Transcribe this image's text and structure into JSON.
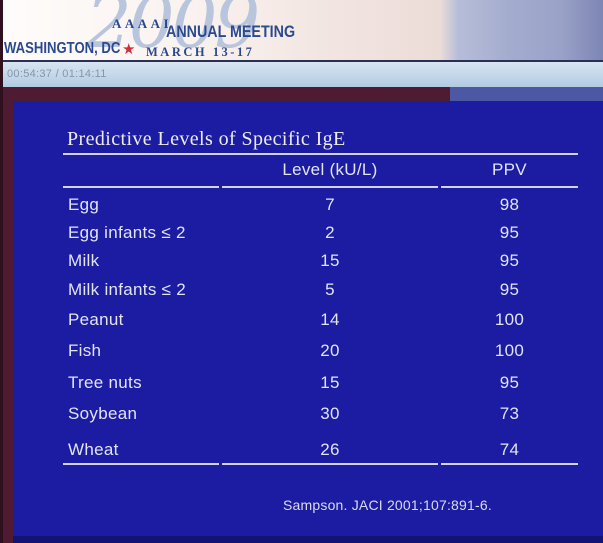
{
  "header": {
    "year": "2009",
    "org": "AAAAI",
    "meeting": "ANNUAL MEETING",
    "city": "WASHINGTON, DC",
    "star_icon": "★",
    "dates": "MARCH 13-17"
  },
  "player": {
    "timecode": "00:54:37 / 01:14:11"
  },
  "slide": {
    "title": "Predictive Levels of Specific IgE",
    "citation": "Sampson. JACI 2001;107:891-6."
  },
  "chart_data": {
    "type": "table",
    "title": "Predictive Levels of Specific IgE",
    "columns": [
      "",
      "Level (kU/L)",
      "PPV"
    ],
    "rows": [
      [
        "Egg",
        7,
        98
      ],
      [
        "Egg infants ≤ 2",
        2,
        95
      ],
      [
        "Milk",
        15,
        95
      ],
      [
        "Milk infants ≤ 2",
        5,
        95
      ],
      [
        "Peanut",
        14,
        100
      ],
      [
        "Fish",
        20,
        100
      ],
      [
        "Tree nuts",
        15,
        95
      ],
      [
        "Soybean",
        30,
        73
      ],
      [
        "Wheat",
        26,
        74
      ]
    ],
    "source": "Sampson. JACI 2001;107:891-6."
  },
  "colors": {
    "slide_background": "#1c1ca2",
    "frame_maroon": "#4e1b32",
    "logo_blue": "#2b4a8e",
    "star_red": "#cd2f3e",
    "timebar_blue": "#b2cbe3",
    "accent_slate": "#4d58a4"
  }
}
